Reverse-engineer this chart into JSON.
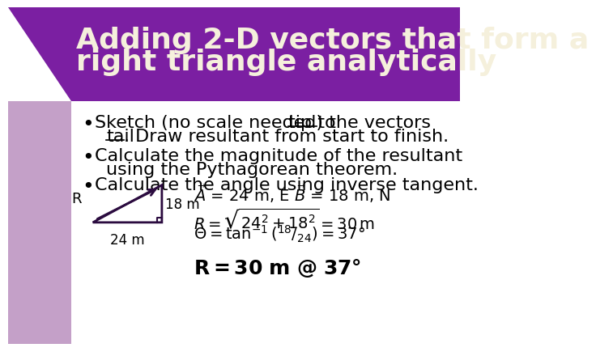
{
  "title_line1": "Adding 2-D vectors that form a",
  "title_line2": "right triangle analytically",
  "title_color": "#F5F0DC",
  "title_bg_color": "#7B1FA2",
  "left_bar_color": "#C4A0C8",
  "slide_bg_color": "#FFFFFF",
  "bullet1a": "Sketch (no scale needed) the vectors ",
  "bullet1b": "tip to",
  "bullet1c": "tail",
  "bullet1d": ". Draw resultant from start to finish.",
  "bullet2": "Calculate the magnitude of the resultant\nusing the Pythagorean theorem.",
  "bullet3": "Calculate the angle using inverse tangent.",
  "tri_R": "R",
  "tri_18m": "18 m",
  "tri_24m": "24 m",
  "title_fontsize": 26,
  "bullet_fontsize": 16,
  "eq_fontsize": 14,
  "eq5_fontsize": 16
}
